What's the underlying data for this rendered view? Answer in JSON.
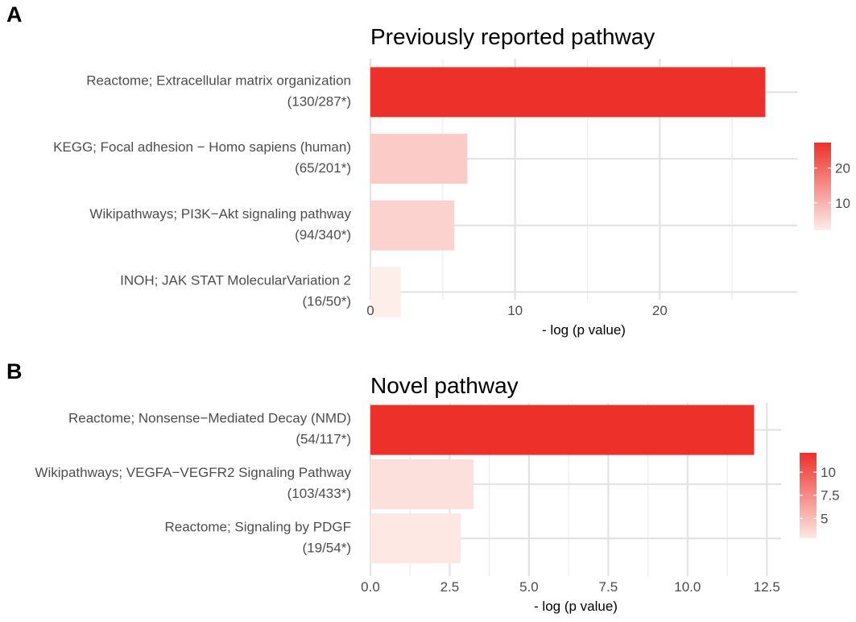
{
  "chart_data": [
    {
      "type": "bar",
      "orientation": "horizontal",
      "panel_label": "A",
      "title": "Previously reported pathway",
      "xlabel": "- log (p value)",
      "ylabel": "",
      "categories": [
        "Reactome; Extracellular matrix organization",
        "KEGG; Focal adhesion − Homo sapiens (human)",
        "Wikipathways; PI3K−Akt signaling pathway",
        "INOH; JAK STAT MolecularVariation 2"
      ],
      "counts": [
        "(130/287*)",
        "(65/201*)",
        "(94/340*)",
        "(16/50*)"
      ],
      "values": [
        27.3,
        6.7,
        5.8,
        2.1
      ],
      "xlim": [
        0,
        29.5
      ],
      "xticks": [
        0,
        10,
        20
      ],
      "xtick_labels": [
        "0",
        "10",
        "20"
      ],
      "grid": true,
      "legend": {
        "position": "right",
        "range": [
          2.1,
          27.3
        ],
        "ticks": [
          10,
          20
        ],
        "tick_labels": [
          "10",
          "20"
        ],
        "color_low": "#fdeeea",
        "color_high": "#ee302a"
      }
    },
    {
      "type": "bar",
      "orientation": "horizontal",
      "panel_label": "B",
      "title": "Novel pathway",
      "xlabel": "- log (p value)",
      "ylabel": "",
      "categories": [
        "Reactome; Nonsense−Mediated Decay (NMD)",
        "Wikipathways; VEGFA−VEGFR2 Signaling Pathway",
        "Reactome; Signaling by PDGF"
      ],
      "counts": [
        "(54/117*)",
        "(103/433*)",
        "(19/54*)"
      ],
      "values": [
        12.1,
        3.25,
        2.85
      ],
      "xlim": [
        0,
        12.95
      ],
      "xticks": [
        0,
        2.5,
        5,
        7.5,
        10,
        12.5
      ],
      "xtick_labels": [
        "0.0",
        "2.5",
        "5.0",
        "7.5",
        "10.0",
        "12.5"
      ],
      "grid": true,
      "legend": {
        "position": "right",
        "range": [
          2.85,
          12.1
        ],
        "ticks": [
          5,
          7.5,
          10
        ],
        "tick_labels": [
          "5",
          "7.5",
          "10"
        ],
        "color_low": "#fde8e3",
        "color_high": "#ee302a"
      }
    }
  ]
}
